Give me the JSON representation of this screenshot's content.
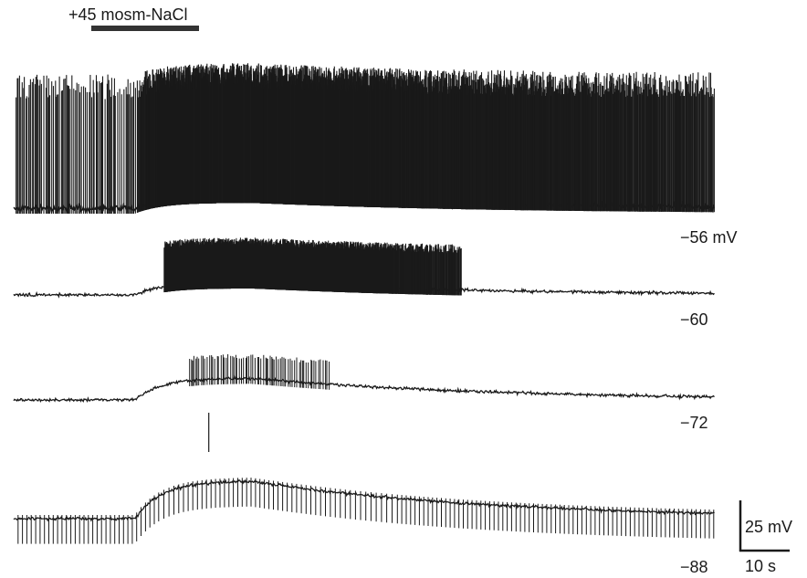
{
  "chart_data": {
    "type": "line",
    "stimulus": {
      "label": "+45 mosm-NaCl",
      "start_s": 15,
      "end_s": 35
    },
    "time_range_s": [
      0,
      133
    ],
    "traces": [
      {
        "holding_label": "−56 mV",
        "baseline_mv": -56,
        "peak_depolarization_mv": 6,
        "spike_rate_hz": {
          "before": 3.5,
          "during": 30,
          "after": 4
        },
        "spike_amplitude_mv": 70,
        "spike_window_s": [
          0,
          133
        ]
      },
      {
        "holding_label": "−60",
        "baseline_mv": -60,
        "peak_depolarization_mv": 7,
        "spike_rate_hz": {
          "before": 0,
          "during": 25,
          "after": 0.2
        },
        "spike_amplitude_mv": 25,
        "spike_window_s": [
          23,
          85
        ]
      },
      {
        "holding_label": "−72",
        "baseline_mv": -72,
        "peak_depolarization_mv": 15,
        "spike_rate_hz": {
          "before": 0,
          "during": 3,
          "after": 0
        },
        "spike_amplitude_mv": 16,
        "spike_window_s": [
          33,
          60
        ]
      },
      {
        "holding_label": "−88",
        "baseline_mv": -88,
        "peak_depolarization_mv": 18,
        "spike_rate_hz": {
          "before": 1.2,
          "during": 1.2,
          "after": 1.2
        },
        "spike_amplitude_mv": 12,
        "spike_window_s": [
          0,
          133
        ]
      }
    ],
    "scale_bar": {
      "voltage_label": "25 mV",
      "time_label": "10 s",
      "voltage_mv": 25,
      "time_s": 10
    }
  }
}
